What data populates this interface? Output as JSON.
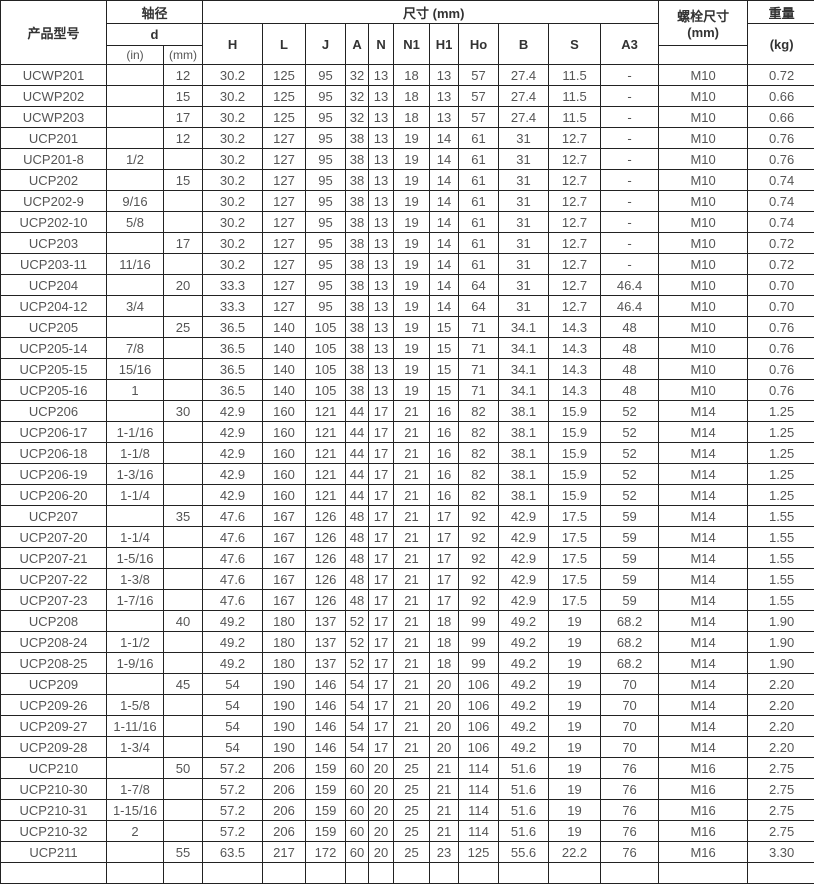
{
  "header": {
    "model": "产品型号",
    "shaft": "轴径",
    "d": "d",
    "in": "(in)",
    "mm": "(mm)",
    "dims": "尺寸 (mm)",
    "dim_cols": [
      "H",
      "L",
      "J",
      "A",
      "N",
      "N1",
      "H1",
      "Ho",
      "B",
      "S",
      "A3"
    ],
    "bolt": "螺栓尺寸",
    "bolt_unit": "(mm)",
    "weight": "重量",
    "weight_unit": "(kg)"
  },
  "rows": [
    [
      "UCWP201",
      "",
      "12",
      "30.2",
      "125",
      "95",
      "32",
      "13",
      "18",
      "13",
      "57",
      "27.4",
      "11.5",
      "-",
      "M10",
      "0.72"
    ],
    [
      "UCWP202",
      "",
      "15",
      "30.2",
      "125",
      "95",
      "32",
      "13",
      "18",
      "13",
      "57",
      "27.4",
      "11.5",
      "-",
      "M10",
      "0.66"
    ],
    [
      "UCWP203",
      "",
      "17",
      "30.2",
      "125",
      "95",
      "32",
      "13",
      "18",
      "13",
      "57",
      "27.4",
      "11.5",
      "-",
      "M10",
      "0.66"
    ],
    [
      "UCP201",
      "",
      "12",
      "30.2",
      "127",
      "95",
      "38",
      "13",
      "19",
      "14",
      "61",
      "31",
      "12.7",
      "-",
      "M10",
      "0.76"
    ],
    [
      "UCP201-8",
      "1/2",
      "",
      "30.2",
      "127",
      "95",
      "38",
      "13",
      "19",
      "14",
      "61",
      "31",
      "12.7",
      "-",
      "M10",
      "0.76"
    ],
    [
      "UCP202",
      "",
      "15",
      "30.2",
      "127",
      "95",
      "38",
      "13",
      "19",
      "14",
      "61",
      "31",
      "12.7",
      "-",
      "M10",
      "0.74"
    ],
    [
      "UCP202-9",
      "9/16",
      "",
      "30.2",
      "127",
      "95",
      "38",
      "13",
      "19",
      "14",
      "61",
      "31",
      "12.7",
      "-",
      "M10",
      "0.74"
    ],
    [
      "UCP202-10",
      "5/8",
      "",
      "30.2",
      "127",
      "95",
      "38",
      "13",
      "19",
      "14",
      "61",
      "31",
      "12.7",
      "-",
      "M10",
      "0.74"
    ],
    [
      "UCP203",
      "",
      "17",
      "30.2",
      "127",
      "95",
      "38",
      "13",
      "19",
      "14",
      "61",
      "31",
      "12.7",
      "-",
      "M10",
      "0.72"
    ],
    [
      "UCP203-11",
      "11/16",
      "",
      "30.2",
      "127",
      "95",
      "38",
      "13",
      "19",
      "14",
      "61",
      "31",
      "12.7",
      "-",
      "M10",
      "0.72"
    ],
    [
      "UCP204",
      "",
      "20",
      "33.3",
      "127",
      "95",
      "38",
      "13",
      "19",
      "14",
      "64",
      "31",
      "12.7",
      "46.4",
      "M10",
      "0.70"
    ],
    [
      "UCP204-12",
      "3/4",
      "",
      "33.3",
      "127",
      "95",
      "38",
      "13",
      "19",
      "14",
      "64",
      "31",
      "12.7",
      "46.4",
      "M10",
      "0.70"
    ],
    [
      "UCP205",
      "",
      "25",
      "36.5",
      "140",
      "105",
      "38",
      "13",
      "19",
      "15",
      "71",
      "34.1",
      "14.3",
      "48",
      "M10",
      "0.76"
    ],
    [
      "UCP205-14",
      "7/8",
      "",
      "36.5",
      "140",
      "105",
      "38",
      "13",
      "19",
      "15",
      "71",
      "34.1",
      "14.3",
      "48",
      "M10",
      "0.76"
    ],
    [
      "UCP205-15",
      "15/16",
      "",
      "36.5",
      "140",
      "105",
      "38",
      "13",
      "19",
      "15",
      "71",
      "34.1",
      "14.3",
      "48",
      "M10",
      "0.76"
    ],
    [
      "UCP205-16",
      "1",
      "",
      "36.5",
      "140",
      "105",
      "38",
      "13",
      "19",
      "15",
      "71",
      "34.1",
      "14.3",
      "48",
      "M10",
      "0.76"
    ],
    [
      "UCP206",
      "",
      "30",
      "42.9",
      "160",
      "121",
      "44",
      "17",
      "21",
      "16",
      "82",
      "38.1",
      "15.9",
      "52",
      "M14",
      "1.25"
    ],
    [
      "UCP206-17",
      "1-1/16",
      "",
      "42.9",
      "160",
      "121",
      "44",
      "17",
      "21",
      "16",
      "82",
      "38.1",
      "15.9",
      "52",
      "M14",
      "1.25"
    ],
    [
      "UCP206-18",
      "1-1/8",
      "",
      "42.9",
      "160",
      "121",
      "44",
      "17",
      "21",
      "16",
      "82",
      "38.1",
      "15.9",
      "52",
      "M14",
      "1.25"
    ],
    [
      "UCP206-19",
      "1-3/16",
      "",
      "42.9",
      "160",
      "121",
      "44",
      "17",
      "21",
      "16",
      "82",
      "38.1",
      "15.9",
      "52",
      "M14",
      "1.25"
    ],
    [
      "UCP206-20",
      "1-1/4",
      "",
      "42.9",
      "160",
      "121",
      "44",
      "17",
      "21",
      "16",
      "82",
      "38.1",
      "15.9",
      "52",
      "M14",
      "1.25"
    ],
    [
      "UCP207",
      "",
      "35",
      "47.6",
      "167",
      "126",
      "48",
      "17",
      "21",
      "17",
      "92",
      "42.9",
      "17.5",
      "59",
      "M14",
      "1.55"
    ],
    [
      "UCP207-20",
      "1-1/4",
      "",
      "47.6",
      "167",
      "126",
      "48",
      "17",
      "21",
      "17",
      "92",
      "42.9",
      "17.5",
      "59",
      "M14",
      "1.55"
    ],
    [
      "UCP207-21",
      "1-5/16",
      "",
      "47.6",
      "167",
      "126",
      "48",
      "17",
      "21",
      "17",
      "92",
      "42.9",
      "17.5",
      "59",
      "M14",
      "1.55"
    ],
    [
      "UCP207-22",
      "1-3/8",
      "",
      "47.6",
      "167",
      "126",
      "48",
      "17",
      "21",
      "17",
      "92",
      "42.9",
      "17.5",
      "59",
      "M14",
      "1.55"
    ],
    [
      "UCP207-23",
      "1-7/16",
      "",
      "47.6",
      "167",
      "126",
      "48",
      "17",
      "21",
      "17",
      "92",
      "42.9",
      "17.5",
      "59",
      "M14",
      "1.55"
    ],
    [
      "UCP208",
      "",
      "40",
      "49.2",
      "180",
      "137",
      "52",
      "17",
      "21",
      "18",
      "99",
      "49.2",
      "19",
      "68.2",
      "M14",
      "1.90"
    ],
    [
      "UCP208-24",
      "1-1/2",
      "",
      "49.2",
      "180",
      "137",
      "52",
      "17",
      "21",
      "18",
      "99",
      "49.2",
      "19",
      "68.2",
      "M14",
      "1.90"
    ],
    [
      "UCP208-25",
      "1-9/16",
      "",
      "49.2",
      "180",
      "137",
      "52",
      "17",
      "21",
      "18",
      "99",
      "49.2",
      "19",
      "68.2",
      "M14",
      "1.90"
    ],
    [
      "UCP209",
      "",
      "45",
      "54",
      "190",
      "146",
      "54",
      "17",
      "21",
      "20",
      "106",
      "49.2",
      "19",
      "70",
      "M14",
      "2.20"
    ],
    [
      "UCP209-26",
      "1-5/8",
      "",
      "54",
      "190",
      "146",
      "54",
      "17",
      "21",
      "20",
      "106",
      "49.2",
      "19",
      "70",
      "M14",
      "2.20"
    ],
    [
      "UCP209-27",
      "1-11/16",
      "",
      "54",
      "190",
      "146",
      "54",
      "17",
      "21",
      "20",
      "106",
      "49.2",
      "19",
      "70",
      "M14",
      "2.20"
    ],
    [
      "UCP209-28",
      "1-3/4",
      "",
      "54",
      "190",
      "146",
      "54",
      "17",
      "21",
      "20",
      "106",
      "49.2",
      "19",
      "70",
      "M14",
      "2.20"
    ],
    [
      "UCP210",
      "",
      "50",
      "57.2",
      "206",
      "159",
      "60",
      "20",
      "25",
      "21",
      "114",
      "51.6",
      "19",
      "76",
      "M16",
      "2.75"
    ],
    [
      "UCP210-30",
      "1-7/8",
      "",
      "57.2",
      "206",
      "159",
      "60",
      "20",
      "25",
      "21",
      "114",
      "51.6",
      "19",
      "76",
      "M16",
      "2.75"
    ],
    [
      "UCP210-31",
      "1-15/16",
      "",
      "57.2",
      "206",
      "159",
      "60",
      "20",
      "25",
      "21",
      "114",
      "51.6",
      "19",
      "76",
      "M16",
      "2.75"
    ],
    [
      "UCP210-32",
      "2",
      "",
      "57.2",
      "206",
      "159",
      "60",
      "20",
      "25",
      "21",
      "114",
      "51.6",
      "19",
      "76",
      "M16",
      "2.75"
    ],
    [
      "UCP211",
      "",
      "55",
      "63.5",
      "217",
      "172",
      "60",
      "20",
      "25",
      "23",
      "125",
      "55.6",
      "22.2",
      "76",
      "M16",
      "3.30"
    ]
  ]
}
